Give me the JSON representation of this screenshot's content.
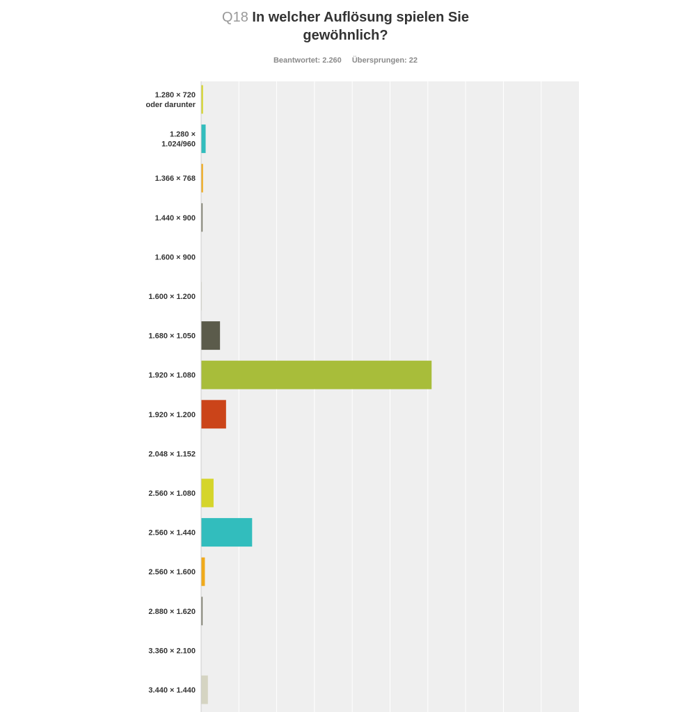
{
  "question": {
    "number": "Q18",
    "text": "In welcher Auflösung spielen Sie gewöhnlich?"
  },
  "stats": {
    "answered": "Beantwortet: 2.260",
    "skipped": "Übersprungen: 22"
  },
  "chart_data": {
    "type": "bar",
    "orientation": "horizontal",
    "title": "In welcher Auflösung spielen Sie gewöhnlich?",
    "categories": [
      "1.280 × 720 oder darunter",
      "1.280 × 1.024/960",
      "1.366 × 768",
      "1.440 × 900",
      "1.600 × 900",
      "1.600 × 1.200",
      "1.680 × 1.050",
      "1.920 × 1.080",
      "1.920 × 1.200",
      "2.048 × 1.152",
      "2.560 × 1.080",
      "2.560 × 1.440",
      "2.560 × 1.600",
      "2.880 × 1.620",
      "3.360 × 2.100",
      "3.440 × 1.440"
    ],
    "category_lines": [
      [
        "1.280 × 720",
        "oder darunter"
      ],
      [
        "1.280 ×",
        "1.024/960"
      ],
      [
        "1.366 × 768"
      ],
      [
        "1.440 × 900"
      ],
      [
        "1.600 × 900"
      ],
      [
        "1.600 × 1.200"
      ],
      [
        "1.680 × 1.050"
      ],
      [
        "1.920 × 1.080"
      ],
      [
        "1.920 × 1.200"
      ],
      [
        "2.048 × 1.152"
      ],
      [
        "2.560 × 1.080"
      ],
      [
        "2.560 × 1.440"
      ],
      [
        "2.560 × 1.600"
      ],
      [
        "2.880 × 1.620"
      ],
      [
        "3.360 × 2.100"
      ],
      [
        "3.440 × 1.440"
      ]
    ],
    "values": [
      0.5,
      1.2,
      0.5,
      0.4,
      0,
      0.2,
      5.0,
      61.0,
      6.6,
      0,
      3.3,
      13.5,
      1.0,
      0.4,
      0,
      1.8
    ],
    "unit": "%",
    "xlim": [
      0,
      100
    ],
    "grid_step": 10,
    "grid": true,
    "colors": [
      "#d5d52b",
      "#32bdbd",
      "#f0aa1b",
      "#7c7c6c",
      "#a9b93a",
      "#d9d9c8",
      "#5b5b4b",
      "#a8bd3a",
      "#cb4419",
      "#6b6b5b",
      "#d5d52b",
      "#32bdbd",
      "#f0aa1b",
      "#7c7c6c",
      "#a9b93a",
      "#d5d4c2"
    ],
    "plot_background": "#efefef",
    "gridline_color": "#ffffff"
  }
}
